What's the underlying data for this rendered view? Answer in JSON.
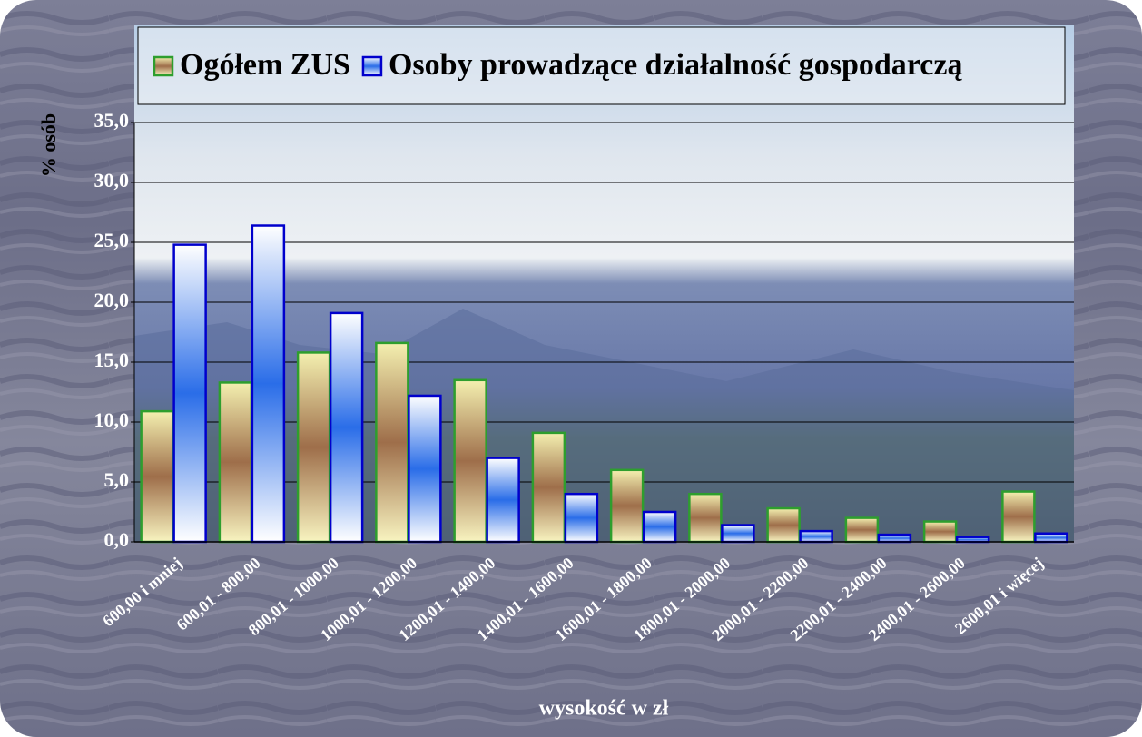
{
  "chart_data": {
    "type": "bar",
    "legend": "top",
    "grid": true,
    "y_label": "% osób",
    "x_label": "wysokość w zł",
    "categories": [
      "600,00 i mniej",
      "600,01 - 800,00",
      "800,01 - 1000,00",
      "1000,01 - 1200,00",
      "1200,01 - 1400,00",
      "1400,01 - 1600,00",
      "1600,01 - 1800,00",
      "1800,01 - 2000,00",
      "2000,01 - 2200,00",
      "2200,01 - 2400,00",
      "2400,01 - 2600,00",
      "2600,01 i więcej"
    ],
    "series": [
      {
        "name": "Ogółem ZUS",
        "color": "#2e9e2e",
        "values": [
          10.9,
          13.3,
          15.8,
          16.6,
          13.5,
          9.1,
          6.0,
          4.0,
          2.8,
          2.0,
          1.7,
          4.2
        ]
      },
      {
        "name": "Osoby prowadzące działalność gospodarczą",
        "color": "#0000cc",
        "values": [
          24.8,
          26.4,
          19.1,
          12.2,
          7.0,
          4.0,
          2.5,
          1.4,
          0.9,
          0.6,
          0.4,
          0.7
        ]
      }
    ],
    "ylim": [
      0,
      35
    ],
    "yticks": [
      {
        "value": 0,
        "label": "0,0"
      },
      {
        "value": 5,
        "label": "5,0"
      },
      {
        "value": 10,
        "label": "10,0"
      },
      {
        "value": 15,
        "label": "15,0"
      },
      {
        "value": 20,
        "label": "20,0"
      },
      {
        "value": 25,
        "label": "25,0"
      },
      {
        "value": 30,
        "label": "30,0"
      },
      {
        "value": 35,
        "label": "35,0"
      }
    ]
  }
}
